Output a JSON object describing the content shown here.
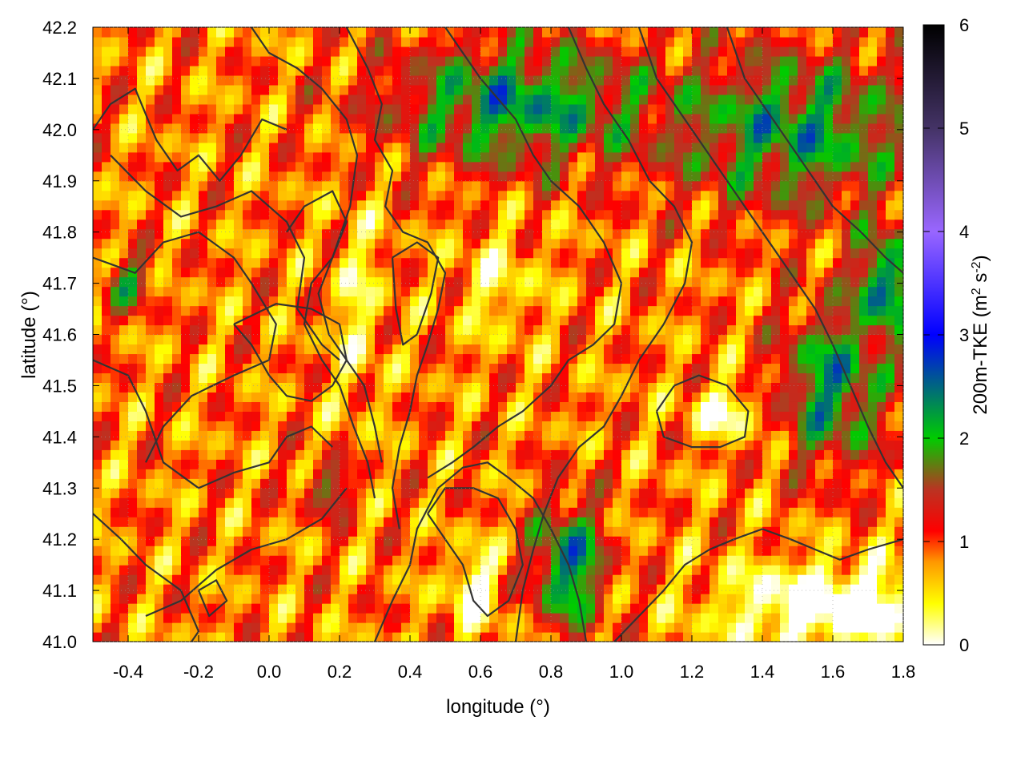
{
  "chart_data": {
    "type": "heatmap",
    "title": "",
    "xlabel": "longitude (°)",
    "ylabel": "latitude (°)",
    "colorbar_label": "200m-TKE (m² s⁻²)",
    "colorbar_label_main": "200m-TKE (m",
    "colorbar_label_sup1": "2",
    "colorbar_label_mid": " s",
    "colorbar_label_sup2": "-2",
    "colorbar_label_end": ")",
    "xlim": [
      -0.5,
      1.8
    ],
    "ylim": [
      41.0,
      42.2
    ],
    "zlim": [
      0,
      6
    ],
    "x_ticks": [
      -0.4,
      -0.2,
      0.0,
      0.2,
      0.4,
      0.6,
      0.8,
      1.0,
      1.2,
      1.4,
      1.6,
      1.8
    ],
    "x_tick_labels": [
      "-0.4",
      "-0.2",
      "0.0",
      "0.2",
      "0.4",
      "0.6",
      "0.8",
      "1.0",
      "1.2",
      "1.4",
      "1.6",
      "1.8"
    ],
    "y_ticks": [
      41.0,
      41.1,
      41.2,
      41.3,
      41.4,
      41.5,
      41.6,
      41.7,
      41.8,
      41.9,
      42.0,
      42.1,
      42.2
    ],
    "y_tick_labels": [
      "41.0",
      "41.1",
      "41.2",
      "41.3",
      "41.4",
      "41.5",
      "41.6",
      "41.7",
      "41.8",
      "41.9",
      "42.0",
      "42.1",
      "42.2"
    ],
    "colorbar_ticks": [
      0,
      1,
      2,
      3,
      4,
      5,
      6
    ],
    "colorbar_tick_labels": [
      "0",
      "1",
      "2",
      "3",
      "4",
      "5",
      "6"
    ],
    "colormap": [
      {
        "value": 0.0,
        "color": "#ffffff"
      },
      {
        "value": 0.4,
        "color": "#ffff00"
      },
      {
        "value": 0.8,
        "color": "#ff9900"
      },
      {
        "value": 1.1,
        "color": "#ff0000"
      },
      {
        "value": 1.5,
        "color": "#bb3322"
      },
      {
        "value": 2.0,
        "color": "#00cc00"
      },
      {
        "value": 3.0,
        "color": "#0000ff"
      },
      {
        "value": 4.0,
        "color": "#9966ff"
      },
      {
        "value": 5.0,
        "color": "#443366"
      },
      {
        "value": 6.0,
        "color": "#000000"
      }
    ],
    "field": {
      "base": 0.85,
      "features": [
        {
          "lon": 0.7,
          "lat": 42.05,
          "amp": 1.4,
          "sx": 0.35,
          "sy": 0.12
        },
        {
          "lon": 1.5,
          "lat": 42.0,
          "amp": 1.3,
          "sx": 0.35,
          "sy": 0.15
        },
        {
          "lon": 1.6,
          "lat": 41.5,
          "amp": 1.4,
          "sx": 0.15,
          "sy": 0.15
        },
        {
          "lon": 1.75,
          "lat": 41.7,
          "amp": 1.6,
          "sx": 0.08,
          "sy": 0.1
        },
        {
          "lon": 0.85,
          "lat": 41.15,
          "amp": 1.6,
          "sx": 0.1,
          "sy": 0.12
        },
        {
          "lon": -0.4,
          "lat": 41.7,
          "amp": 1.0,
          "sx": 0.07,
          "sy": 0.05
        },
        {
          "lon": 0.17,
          "lat": 41.3,
          "amp": 1.0,
          "sx": 0.06,
          "sy": 0.05
        },
        {
          "lon": 1.6,
          "lat": 41.07,
          "amp": -1.2,
          "sx": 0.3,
          "sy": 0.08
        },
        {
          "lon": 0.58,
          "lat": 41.1,
          "amp": -0.9,
          "sx": 0.07,
          "sy": 0.08
        },
        {
          "lon": 0.25,
          "lat": 41.65,
          "amp": -0.5,
          "sx": 0.07,
          "sy": 0.2
        },
        {
          "lon": 0.65,
          "lat": 41.7,
          "amp": -0.45,
          "sx": 0.12,
          "sy": 0.1
        },
        {
          "lon": 1.3,
          "lat": 41.45,
          "amp": -0.8,
          "sx": 0.1,
          "sy": 0.05
        }
      ]
    },
    "contours": [
      [
        [
          -0.5,
          42.0
        ],
        [
          -0.45,
          42.05
        ],
        [
          -0.38,
          42.08
        ],
        [
          -0.32,
          41.98
        ],
        [
          -0.26,
          41.92
        ],
        [
          -0.2,
          41.95
        ],
        [
          -0.14,
          41.9
        ],
        [
          -0.08,
          41.95
        ],
        [
          -0.02,
          42.02
        ],
        [
          0.05,
          42.0
        ]
      ],
      [
        [
          -0.5,
          41.75
        ],
        [
          -0.38,
          41.72
        ],
        [
          -0.3,
          41.78
        ],
        [
          -0.2,
          41.8
        ],
        [
          -0.1,
          41.75
        ],
        [
          -0.05,
          41.7
        ],
        [
          0.02,
          41.62
        ],
        [
          0.0,
          41.55
        ],
        [
          -0.1,
          41.52
        ],
        [
          -0.22,
          41.48
        ],
        [
          -0.3,
          41.42
        ],
        [
          -0.35,
          41.35
        ]
      ],
      [
        [
          -0.5,
          41.55
        ],
        [
          -0.4,
          41.52
        ],
        [
          -0.35,
          41.45
        ],
        [
          -0.3,
          41.35
        ],
        [
          -0.2,
          41.3
        ],
        [
          -0.1,
          41.33
        ],
        [
          0.0,
          41.35
        ],
        [
          0.05,
          41.4
        ],
        [
          0.12,
          41.42
        ],
        [
          0.18,
          41.38
        ]
      ],
      [
        [
          -0.35,
          41.05
        ],
        [
          -0.25,
          41.08
        ],
        [
          -0.15,
          41.14
        ],
        [
          -0.05,
          41.18
        ],
        [
          0.05,
          41.2
        ],
        [
          0.15,
          41.24
        ],
        [
          0.22,
          41.3
        ]
      ],
      [
        [
          -0.5,
          41.25
        ],
        [
          -0.42,
          41.2
        ],
        [
          -0.35,
          41.15
        ],
        [
          -0.25,
          41.1
        ],
        [
          -0.2,
          41.02
        ],
        [
          -0.22,
          41.0
        ]
      ],
      [
        [
          -0.2,
          41.1
        ],
        [
          -0.15,
          41.12
        ],
        [
          -0.12,
          41.08
        ],
        [
          -0.17,
          41.05
        ],
        [
          -0.2,
          41.1
        ]
      ],
      [
        [
          -0.45,
          41.95
        ],
        [
          -0.35,
          41.88
        ],
        [
          -0.25,
          41.83
        ],
        [
          -0.15,
          41.85
        ],
        [
          -0.05,
          41.88
        ],
        [
          0.05,
          41.82
        ],
        [
          0.1,
          41.75
        ],
        [
          0.08,
          41.65
        ],
        [
          0.15,
          41.58
        ],
        [
          0.2,
          41.55
        ]
      ],
      [
        [
          -0.05,
          42.2
        ],
        [
          0.0,
          42.15
        ],
        [
          0.08,
          42.12
        ],
        [
          0.15,
          42.08
        ],
        [
          0.22,
          42.02
        ],
        [
          0.25,
          41.95
        ],
        [
          0.23,
          41.85
        ],
        [
          0.18,
          41.75
        ],
        [
          0.14,
          41.68
        ],
        [
          0.17,
          41.6
        ],
        [
          0.22,
          41.55
        ],
        [
          0.27,
          41.5
        ],
        [
          0.3,
          41.42
        ],
        [
          0.32,
          41.35
        ]
      ],
      [
        [
          0.05,
          41.8
        ],
        [
          0.1,
          41.85
        ],
        [
          0.18,
          41.88
        ],
        [
          0.22,
          41.82
        ],
        [
          0.18,
          41.75
        ],
        [
          0.12,
          41.7
        ],
        [
          0.1,
          41.62
        ],
        [
          0.15,
          41.55
        ],
        [
          0.2,
          41.5
        ],
        [
          0.24,
          41.42
        ],
        [
          0.28,
          41.35
        ],
        [
          0.3,
          41.28
        ]
      ],
      [
        [
          0.22,
          42.2
        ],
        [
          0.28,
          42.12
        ],
        [
          0.32,
          42.05
        ],
        [
          0.3,
          41.98
        ],
        [
          0.35,
          41.92
        ],
        [
          0.33,
          41.85
        ],
        [
          0.38,
          41.8
        ],
        [
          0.45,
          41.78
        ],
        [
          0.5,
          41.72
        ],
        [
          0.48,
          41.65
        ],
        [
          0.45,
          41.58
        ],
        [
          0.42,
          41.52
        ],
        [
          0.4,
          41.45
        ],
        [
          0.37,
          41.38
        ],
        [
          0.35,
          41.3
        ],
        [
          0.37,
          41.22
        ]
      ],
      [
        [
          0.35,
          41.75
        ],
        [
          0.42,
          41.78
        ],
        [
          0.48,
          41.75
        ],
        [
          0.46,
          41.68
        ],
        [
          0.42,
          41.6
        ],
        [
          0.38,
          41.58
        ],
        [
          0.36,
          41.65
        ],
        [
          0.35,
          41.75
        ]
      ],
      [
        [
          0.5,
          42.2
        ],
        [
          0.55,
          42.15
        ],
        [
          0.6,
          42.1
        ],
        [
          0.65,
          42.06
        ],
        [
          0.7,
          42.02
        ],
        [
          0.75,
          41.95
        ],
        [
          0.8,
          41.9
        ],
        [
          0.88,
          41.85
        ],
        [
          0.95,
          41.78
        ],
        [
          1.0,
          41.7
        ],
        [
          0.98,
          41.62
        ],
        [
          0.92,
          41.58
        ],
        [
          0.85,
          41.55
        ],
        [
          0.8,
          41.5
        ],
        [
          0.72,
          41.45
        ],
        [
          0.65,
          41.42
        ],
        [
          0.58,
          41.38
        ],
        [
          0.52,
          41.35
        ],
        [
          0.45,
          41.32
        ]
      ],
      [
        [
          0.85,
          42.2
        ],
        [
          0.9,
          42.12
        ],
        [
          0.95,
          42.05
        ],
        [
          1.02,
          41.98
        ],
        [
          1.08,
          41.9
        ],
        [
          1.15,
          41.85
        ],
        [
          1.2,
          41.78
        ],
        [
          1.18,
          41.7
        ],
        [
          1.12,
          41.62
        ],
        [
          1.05,
          41.55
        ],
        [
          1.0,
          41.48
        ],
        [
          0.95,
          41.42
        ],
        [
          0.88,
          41.38
        ],
        [
          0.82,
          41.32
        ],
        [
          0.78,
          41.25
        ],
        [
          0.75,
          41.18
        ],
        [
          0.72,
          41.1
        ],
        [
          0.7,
          41.0
        ]
      ],
      [
        [
          1.05,
          42.2
        ],
        [
          1.1,
          42.1
        ],
        [
          1.18,
          42.02
        ],
        [
          1.25,
          41.95
        ],
        [
          1.32,
          41.88
        ],
        [
          1.4,
          41.8
        ],
        [
          1.48,
          41.72
        ],
        [
          1.55,
          41.65
        ],
        [
          1.6,
          41.58
        ],
        [
          1.65,
          41.5
        ],
        [
          1.7,
          41.42
        ],
        [
          1.75,
          41.35
        ],
        [
          1.8,
          41.3
        ]
      ],
      [
        [
          1.3,
          42.2
        ],
        [
          1.35,
          42.1
        ],
        [
          1.4,
          42.05
        ],
        [
          1.45,
          42.0
        ],
        [
          1.5,
          41.95
        ],
        [
          1.55,
          41.9
        ],
        [
          1.6,
          41.85
        ],
        [
          1.68,
          41.8
        ],
        [
          1.75,
          41.75
        ],
        [
          1.8,
          41.72
        ]
      ],
      [
        [
          1.1,
          41.45
        ],
        [
          1.15,
          41.5
        ],
        [
          1.22,
          41.52
        ],
        [
          1.3,
          41.5
        ],
        [
          1.36,
          41.45
        ],
        [
          1.35,
          41.4
        ],
        [
          1.28,
          41.38
        ],
        [
          1.2,
          41.38
        ],
        [
          1.12,
          41.4
        ],
        [
          1.1,
          41.45
        ]
      ],
      [
        [
          0.98,
          41.0
        ],
        [
          1.05,
          41.05
        ],
        [
          1.12,
          41.1
        ],
        [
          1.18,
          41.15
        ],
        [
          1.25,
          41.18
        ],
        [
          1.32,
          41.2
        ],
        [
          1.4,
          41.22
        ],
        [
          1.48,
          41.2
        ],
        [
          1.55,
          41.18
        ],
        [
          1.62,
          41.16
        ],
        [
          1.7,
          41.18
        ],
        [
          1.8,
          41.2
        ]
      ],
      [
        [
          0.45,
          41.25
        ],
        [
          0.5,
          41.2
        ],
        [
          0.55,
          41.15
        ],
        [
          0.58,
          41.08
        ],
        [
          0.62,
          41.05
        ],
        [
          0.68,
          41.08
        ],
        [
          0.72,
          41.15
        ],
        [
          0.7,
          41.22
        ],
        [
          0.65,
          41.28
        ],
        [
          0.58,
          41.3
        ],
        [
          0.5,
          41.3
        ],
        [
          0.45,
          41.25
        ]
      ],
      [
        [
          0.3,
          41.0
        ],
        [
          0.35,
          41.08
        ],
        [
          0.4,
          41.15
        ],
        [
          0.42,
          41.22
        ],
        [
          0.48,
          41.3
        ],
        [
          0.55,
          41.34
        ],
        [
          0.62,
          41.35
        ],
        [
          0.68,
          41.32
        ],
        [
          0.75,
          41.28
        ],
        [
          0.8,
          41.22
        ],
        [
          0.85,
          41.15
        ],
        [
          0.88,
          41.08
        ],
        [
          0.9,
          41.0
        ]
      ],
      [
        [
          -0.1,
          41.62
        ],
        [
          -0.05,
          41.58
        ],
        [
          0.0,
          41.52
        ],
        [
          0.05,
          41.48
        ],
        [
          0.12,
          41.47
        ],
        [
          0.18,
          41.5
        ],
        [
          0.22,
          41.55
        ],
        [
          0.2,
          41.62
        ],
        [
          0.12,
          41.65
        ],
        [
          0.02,
          41.66
        ],
        [
          -0.1,
          41.62
        ]
      ]
    ]
  }
}
